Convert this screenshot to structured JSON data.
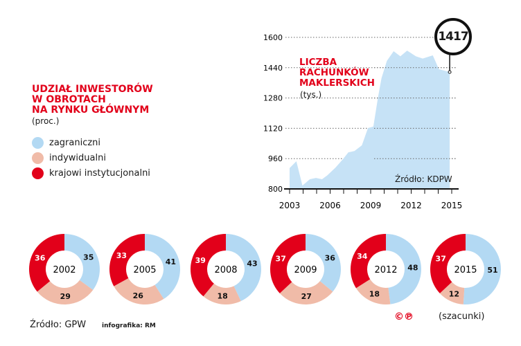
{
  "left_panel": {
    "title_lines": [
      "UDZIAŁ INWESTORÓW",
      "W OBROTACH",
      "NA RYNKU GŁÓWNYM"
    ],
    "unit": "(proc.)",
    "legend": [
      {
        "label": "zagraniczni",
        "color": "#b3d9f3"
      },
      {
        "label": "indywidualni",
        "color": "#f0bba8"
      },
      {
        "label": "krajowi instytucjonalni",
        "color": "#e2001a"
      }
    ]
  },
  "area_chart_title": [
    "LICZBA",
    "RACHUNKÓW",
    "MAKLERSKICH"
  ],
  "area_chart_unit": "(tys.)",
  "area_source": "Źródło: KDPW",
  "callout_value": "1417",
  "footer": {
    "source": "Źródło: GPW",
    "credit": "infografika: RM",
    "copyright": "©℗",
    "estimate_note": "(szacunki)"
  },
  "chart_data": [
    {
      "type": "area",
      "title": "LICZBA RACHUNKÓW MAKLERSKICH (tys.)",
      "color": "#c6e2f6",
      "xlim": [
        2003,
        2015.2
      ],
      "ylim": [
        800,
        1600
      ],
      "x_ticks": [
        "2003",
        "2006",
        "2009",
        "2012",
        "2015"
      ],
      "y_ticks": [
        "800",
        "960",
        "1120",
        "1280",
        "1440",
        "1600"
      ],
      "grid": "dotted horizontal",
      "x": [
        2003.0,
        2003.5,
        2003.95,
        2004.5,
        2004.95,
        2005.4,
        2005.8,
        2006.4,
        2006.95,
        2007.35,
        2007.8,
        2008.35,
        2008.8,
        2009.2,
        2009.55,
        2009.8,
        2010.2,
        2010.7,
        2011.2,
        2011.7,
        2012.35,
        2012.85,
        2013.6,
        2014.05,
        2014.85
      ],
      "y": [
        910,
        946,
        818,
        851,
        858,
        851,
        872,
        913,
        957,
        993,
        1000,
        1030,
        1121,
        1129,
        1286,
        1384,
        1476,
        1527,
        1500,
        1530,
        1500,
        1488,
        1505,
        1432,
        1417
      ]
    },
    {
      "type": "pie",
      "variant": "donut",
      "series_labels": [
        "zagraniczni",
        "indywidualni",
        "krajowi instytucjonalni"
      ],
      "colors": [
        "#b3d9f3",
        "#f0bba8",
        "#e2001a"
      ],
      "donuts": [
        {
          "year": "2002",
          "values": [
            35,
            29,
            36
          ]
        },
        {
          "year": "2005",
          "values": [
            41,
            26,
            33
          ]
        },
        {
          "year": "2008",
          "values": [
            43,
            18,
            39
          ]
        },
        {
          "year": "2009",
          "values": [
            36,
            27,
            37
          ]
        },
        {
          "year": "2012",
          "values": [
            48,
            18,
            34
          ]
        },
        {
          "year": "2015",
          "values": [
            51,
            12,
            37
          ]
        }
      ]
    }
  ]
}
